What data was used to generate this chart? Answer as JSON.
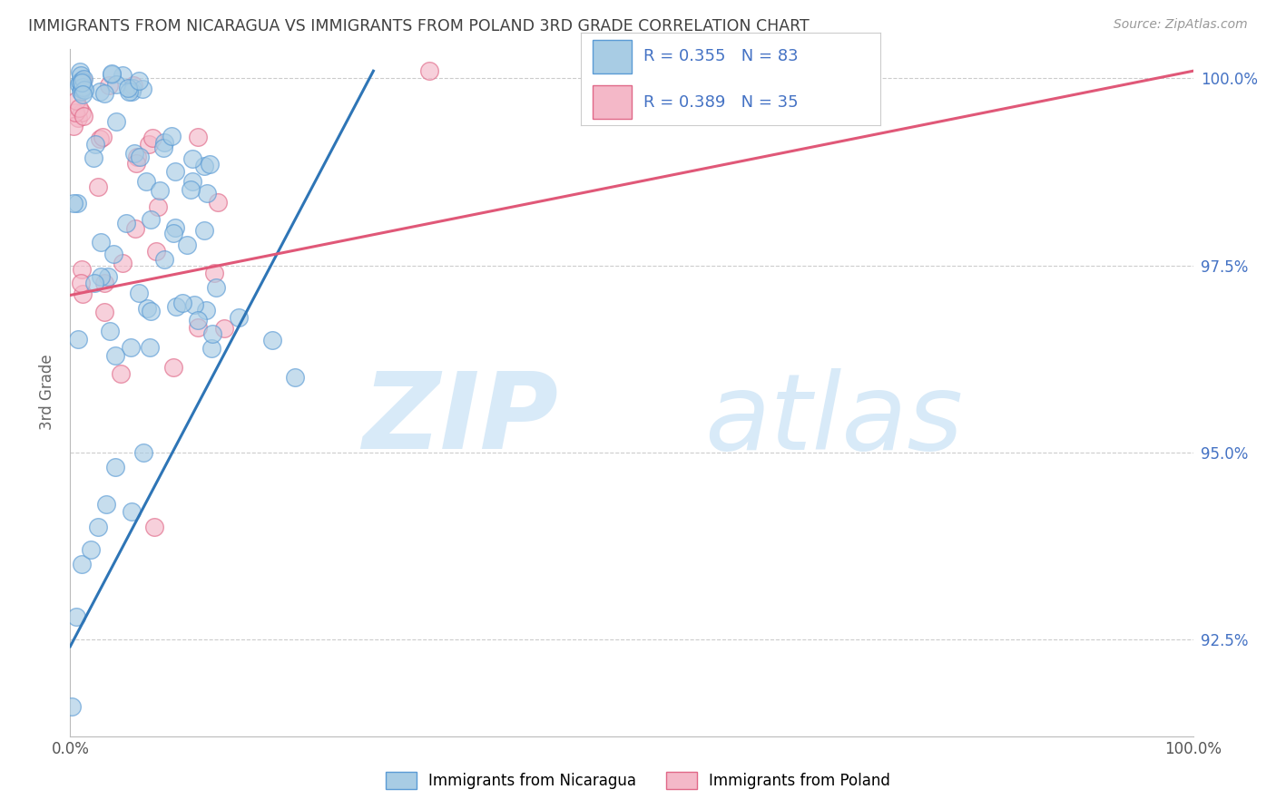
{
  "title": "IMMIGRANTS FROM NICARAGUA VS IMMIGRANTS FROM POLAND 3RD GRADE CORRELATION CHART",
  "source_text": "Source: ZipAtlas.com",
  "ylabel": "3rd Grade",
  "r_nicaragua": 0.355,
  "n_nicaragua": 83,
  "r_poland": 0.389,
  "n_poland": 35,
  "blue_scatter_color": "#a8cce4",
  "blue_edge_color": "#5b9bd5",
  "pink_scatter_color": "#f4b8c8",
  "pink_edge_color": "#e06888",
  "blue_line_color": "#2e75b6",
  "pink_line_color": "#e05878",
  "title_color": "#404040",
  "source_color": "#999999",
  "right_tick_color": "#4472c4",
  "legend_text_color": "#4472c4",
  "xlim": [
    0.0,
    1.0
  ],
  "ylim": [
    0.912,
    1.004
  ],
  "ytick_vals": [
    0.925,
    0.95,
    0.975,
    1.0
  ],
  "ytick_labels": [
    "92.5%",
    "95.0%",
    "97.5%",
    "100.0%"
  ],
  "background_color": "#ffffff",
  "grid_color": "#cccccc",
  "bottom_legend_labels": [
    "Immigrants from Nicaragua",
    "Immigrants from Poland"
  ],
  "nic_line_x0": 0.0,
  "nic_line_y0": 0.924,
  "nic_line_x1": 0.27,
  "nic_line_y1": 1.001,
  "pol_line_x0": 0.0,
  "pol_line_y0": 0.971,
  "pol_line_x1": 1.0,
  "pol_line_y1": 1.001
}
